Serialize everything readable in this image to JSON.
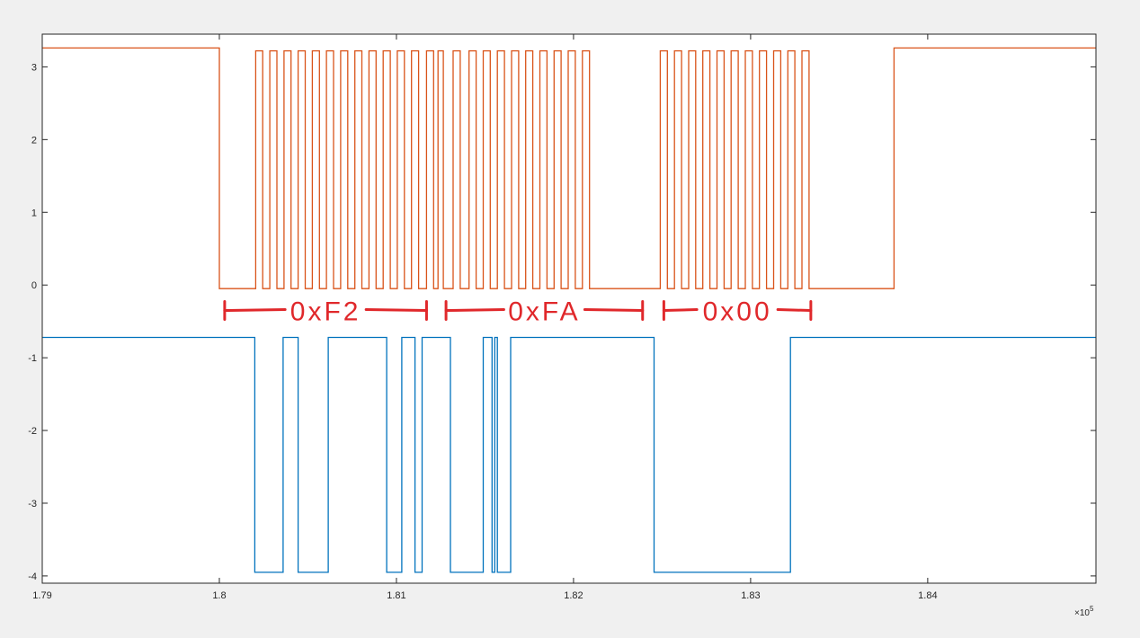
{
  "chart_data": {
    "type": "line",
    "title": "",
    "xlabel": "",
    "ylabel": "",
    "xlim": [
      1.79,
      1.8495
    ],
    "ylim": [
      -4.1,
      3.45
    ],
    "x_exponent_label": "×10",
    "x_exponent_power": "5",
    "x_ticks": [
      "1.79",
      "1.8",
      "1.81",
      "1.82",
      "1.83",
      "1.84"
    ],
    "x_tick_values": [
      1.79,
      1.8,
      1.81,
      1.82,
      1.83,
      1.84
    ],
    "y_ticks": [
      "-4",
      "-3",
      "-2",
      "-1",
      "0",
      "1",
      "2",
      "3"
    ],
    "y_tick_values": [
      -4,
      -3,
      -2,
      -1,
      0,
      1,
      2,
      3
    ],
    "grid": false,
    "box": true,
    "series": [
      {
        "color": "#d95319",
        "low": -0.05,
        "high": 3.22,
        "idle_high": 3.26,
        "high_segments": [
          [
            1.79,
            1.8
          ],
          [
            1.80205,
            1.80245
          ],
          [
            1.80285,
            1.80325
          ],
          [
            1.80365,
            1.80405
          ],
          [
            1.80445,
            1.80485
          ],
          [
            1.80525,
            1.80565
          ],
          [
            1.80605,
            1.80645
          ],
          [
            1.80685,
            1.80725
          ],
          [
            1.80765,
            1.80805
          ],
          [
            1.80845,
            1.80885
          ],
          [
            1.80925,
            1.80965
          ],
          [
            1.81005,
            1.81045
          ],
          [
            1.81085,
            1.81125
          ],
          [
            1.8117,
            1.8121
          ],
          [
            1.81235,
            1.81265
          ],
          [
            1.8132,
            1.8136
          ],
          [
            1.8141,
            1.8145
          ],
          [
            1.8149,
            1.8153
          ],
          [
            1.8157,
            1.8161
          ],
          [
            1.8165,
            1.8169
          ],
          [
            1.8173,
            1.8177
          ],
          [
            1.8181,
            1.8185
          ],
          [
            1.8189,
            1.8193
          ],
          [
            1.8197,
            1.8201
          ],
          [
            1.8205,
            1.8209
          ],
          [
            1.8249,
            1.8253
          ],
          [
            1.8257,
            1.8261
          ],
          [
            1.8265,
            1.8269
          ],
          [
            1.8273,
            1.8277
          ],
          [
            1.8281,
            1.8285
          ],
          [
            1.8289,
            1.8293
          ],
          [
            1.8297,
            1.8301
          ],
          [
            1.8305,
            1.8309
          ],
          [
            1.8313,
            1.8317
          ],
          [
            1.8321,
            1.8325
          ],
          [
            1.8329,
            1.8333
          ],
          [
            1.8381,
            1.8495
          ]
        ]
      },
      {
        "color": "#0072bd",
        "low": -3.95,
        "high": -0.72,
        "high_segments": [
          [
            1.79,
            1.802
          ],
          [
            1.8036,
            1.80445
          ],
          [
            1.80615,
            1.80945
          ],
          [
            1.8103,
            1.81105
          ],
          [
            1.81145,
            1.81305
          ],
          [
            1.8149,
            1.8154
          ],
          [
            1.81555,
            1.8157
          ],
          [
            1.81645,
            1.82455
          ],
          [
            1.83225,
            1.8495
          ]
        ]
      }
    ],
    "annotations": [
      {
        "text": "0xF2",
        "x_start": 1.8003,
        "x_end": 1.8117,
        "y": -0.35,
        "ticks": [
          "start",
          "end"
        ]
      },
      {
        "text": "0xFA",
        "x_start": 1.8128,
        "x_end": 1.8239,
        "y": -0.35,
        "ticks": [
          "start",
          "end"
        ]
      },
      {
        "text": "0x00",
        "x_start": 1.8251,
        "x_end": 1.8334,
        "y": -0.35,
        "ticks": [
          "start",
          "end"
        ]
      }
    ],
    "annotation_color": "#e0282b"
  }
}
